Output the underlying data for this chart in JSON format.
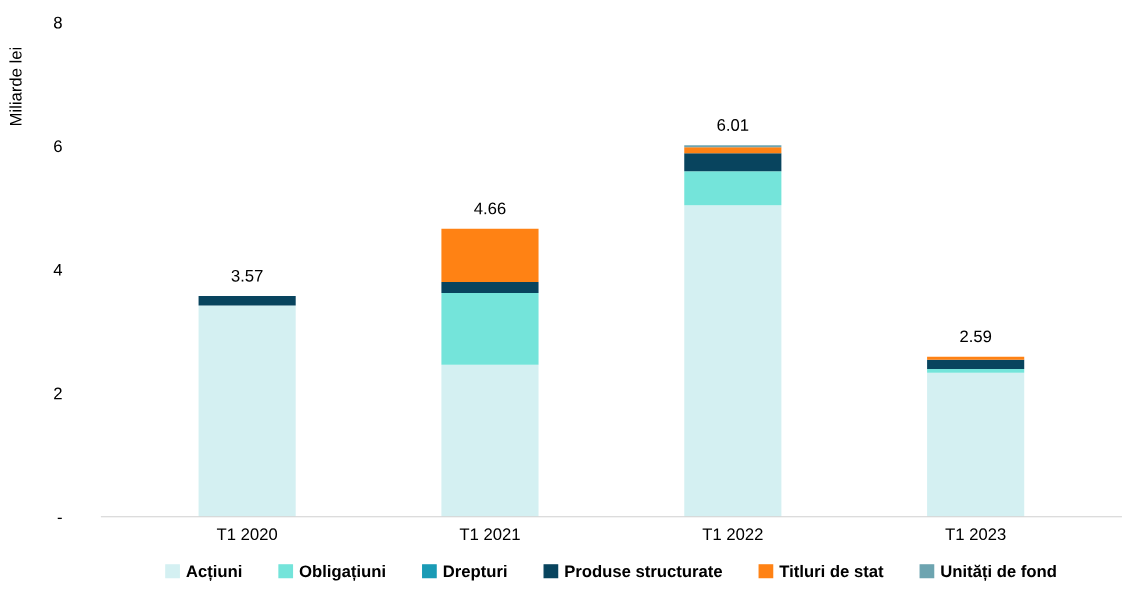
{
  "chart_data": {
    "type": "bar",
    "stacked": true,
    "ylabel": "Miliarde lei",
    "categories": [
      "T1 2020",
      "T1 2021",
      "T1 2022",
      "T1 2023"
    ],
    "series": [
      {
        "name": "Acțiuni",
        "color": "#d4f0f2",
        "values": [
          3.42,
          2.46,
          5.04,
          2.33
        ]
      },
      {
        "name": "Obligațiuni",
        "color": "#74e4da",
        "values": [
          0,
          1.16,
          0.55,
          0.06
        ]
      },
      {
        "name": "Drepturi",
        "color": "#1a9bb5",
        "values": [
          0,
          0,
          0,
          0
        ]
      },
      {
        "name": "Produse structurate",
        "color": "#08445e",
        "values": [
          0.15,
          0.18,
          0.29,
          0.15
        ]
      },
      {
        "name": "Titluri de stat",
        "color": "#ff8214",
        "values": [
          0,
          0.86,
          0.1,
          0.05
        ]
      },
      {
        "name": "Unități de fond",
        "color": "#6da4b0",
        "values": [
          0,
          0,
          0.03,
          null
        ]
      }
    ],
    "totals": [
      "3.57",
      "4.66",
      "6.01",
      "2.59"
    ],
    "ylim": [
      0,
      8
    ],
    "yticks": [
      {
        "value": 0,
        "label": "-"
      },
      2,
      4,
      6,
      8
    ],
    "grid": false,
    "legend": "bottom"
  }
}
